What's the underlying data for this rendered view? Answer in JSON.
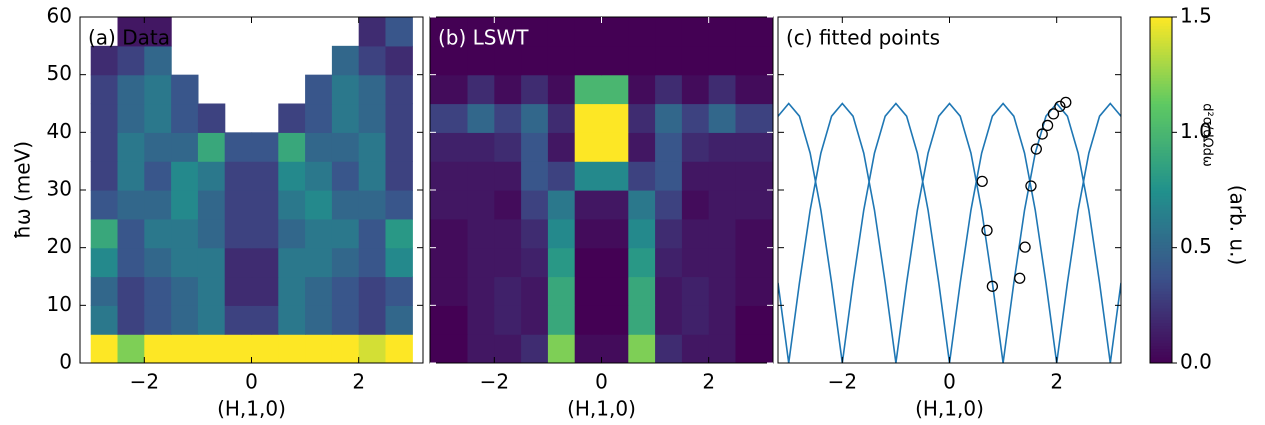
{
  "chart_data": [
    {
      "type": "heatmap",
      "title": "(a) Data",
      "title_color": "#000000",
      "xlabel": "(H,1,0)",
      "ylabel": "ħω (meV)",
      "xlim": [
        -3.2,
        3.2
      ],
      "ylim": [
        0,
        60
      ],
      "xticks": [
        {
          "value": -2,
          "label": "−2"
        },
        0,
        2
      ],
      "yticks": [
        0,
        10,
        20,
        30,
        40,
        50,
        60
      ],
      "cmap": "viridis",
      "zlim": [
        0,
        1.5
      ],
      "xbins": [
        -3,
        -2.5,
        -2,
        -1.5,
        -1,
        -0.5,
        0,
        0.5,
        1,
        1.5,
        2,
        2.5,
        3
      ],
      "ybins": [
        0,
        5,
        10,
        15,
        20,
        25,
        30,
        35,
        40,
        45,
        50,
        55,
        60
      ],
      "z": [
        [
          1.5,
          1.2,
          1.5,
          1.5,
          1.5,
          1.5,
          1.5,
          1.5,
          1.5,
          1.5,
          1.4,
          1.5
        ],
        [
          0.6,
          0.3,
          0.4,
          0.5,
          0.6,
          0.3,
          0.3,
          0.6,
          0.5,
          0.4,
          0.3,
          0.5
        ],
        [
          0.5,
          0.3,
          0.4,
          0.5,
          0.6,
          0.2,
          0.2,
          0.6,
          0.5,
          0.4,
          0.3,
          0.4
        ],
        [
          0.7,
          0.4,
          0.5,
          0.6,
          0.6,
          0.2,
          0.2,
          0.6,
          0.6,
          0.5,
          0.4,
          0.7
        ],
        [
          0.9,
          0.4,
          0.6,
          0.6,
          0.5,
          0.3,
          0.3,
          0.5,
          0.6,
          0.6,
          0.4,
          0.8
        ],
        [
          0.4,
          0.5,
          0.5,
          0.7,
          0.5,
          0.3,
          0.3,
          0.6,
          0.7,
          0.5,
          0.5,
          0.4
        ],
        [
          0.3,
          0.6,
          0.4,
          0.7,
          0.6,
          0.3,
          0.3,
          0.7,
          0.6,
          0.4,
          0.6,
          0.3
        ],
        [
          0.3,
          0.6,
          0.5,
          0.5,
          0.9,
          0.4,
          0.4,
          0.9,
          0.5,
          0.5,
          0.6,
          0.3
        ],
        [
          0.3,
          0.5,
          0.6,
          0.4,
          0.3,
          null,
          null,
          0.3,
          0.4,
          0.6,
          0.5,
          0.3
        ],
        [
          0.3,
          0.5,
          0.6,
          0.4,
          null,
          null,
          null,
          null,
          0.4,
          0.6,
          0.5,
          0.3
        ],
        [
          0.2,
          0.3,
          0.5,
          null,
          null,
          null,
          null,
          null,
          null,
          0.5,
          0.3,
          0.2
        ],
        [
          null,
          0.1,
          0.1,
          null,
          null,
          null,
          null,
          null,
          null,
          null,
          0.2,
          0.4
        ]
      ]
    },
    {
      "type": "heatmap",
      "title": "(b) LSWT",
      "title_color": "#ffffff",
      "xlabel": "(H,1,0)",
      "xlim": [
        -3.2,
        3.2
      ],
      "ylim": [
        0,
        60
      ],
      "xticks": [
        {
          "value": -2,
          "label": "−2"
        },
        0,
        2
      ],
      "yticks": [
        0,
        10,
        20,
        30,
        40,
        50,
        60
      ],
      "cmap": "viridis",
      "zlim": [
        0,
        1.5
      ],
      "xbins": [
        -3.2,
        -2.5,
        -2,
        -1.5,
        -1,
        -0.5,
        0,
        0.5,
        1,
        1.5,
        2,
        2.5,
        3.2
      ],
      "ybins": [
        0,
        5,
        10,
        15,
        20,
        25,
        30,
        35,
        40,
        45,
        50,
        55,
        60
      ],
      "z": [
        [
          0,
          0.1,
          0.1,
          0.2,
          1.2,
          0.05,
          0.05,
          1.2,
          0.2,
          0.1,
          0.1,
          0
        ],
        [
          0,
          0.1,
          0.15,
          0.1,
          0.9,
          0,
          0,
          0.9,
          0.1,
          0.15,
          0.1,
          0
        ],
        [
          0.05,
          0.1,
          0.15,
          0.1,
          0.9,
          0,
          0,
          0.9,
          0.1,
          0.15,
          0.1,
          0.05
        ],
        [
          0.05,
          0.1,
          0.1,
          0.15,
          0.8,
          0,
          0,
          0.8,
          0.15,
          0.1,
          0.1,
          0.05
        ],
        [
          0.05,
          0.1,
          0.1,
          0.2,
          0.7,
          0.05,
          0.05,
          0.7,
          0.2,
          0.1,
          0.1,
          0.05
        ],
        [
          0.1,
          0.1,
          0.05,
          0.3,
          0.6,
          0.1,
          0.1,
          0.6,
          0.3,
          0.05,
          0.1,
          0.1
        ],
        [
          0.1,
          0.1,
          0.1,
          0.4,
          0.3,
          0.7,
          0.7,
          0.3,
          0.4,
          0.1,
          0.1,
          0.1
        ],
        [
          0.15,
          0.15,
          0.2,
          0.4,
          0.1,
          1.5,
          1.5,
          0.1,
          0.4,
          0.2,
          0.15,
          0.15
        ],
        [
          0.3,
          0.5,
          0.3,
          0.5,
          0.2,
          1.5,
          1.5,
          0.2,
          0.5,
          0.3,
          0.5,
          0.3
        ],
        [
          0.05,
          0.2,
          0.05,
          0.2,
          0.05,
          1.0,
          1.0,
          0.05,
          0.2,
          0.05,
          0.2,
          0.05
        ],
        [
          0,
          0,
          0,
          0,
          0,
          0,
          0,
          0,
          0,
          0,
          0,
          0
        ],
        [
          0,
          0,
          0,
          0,
          0,
          0,
          0,
          0,
          0,
          0,
          0,
          0
        ]
      ]
    },
    {
      "type": "line",
      "title": "(c)  fitted points",
      "title_color": "#000000",
      "xlabel": "(H,1,0)",
      "xlim": [
        -3.2,
        3.2
      ],
      "ylim": [
        0,
        60
      ],
      "xticks": [
        {
          "value": -2,
          "label": "−2"
        },
        0,
        2
      ],
      "yticks": [
        0,
        10,
        20,
        30,
        40,
        50,
        60
      ],
      "x": [
        -3.2,
        -3,
        -2.8,
        -2.6,
        -2.4,
        -2.2,
        -2,
        -1.8,
        -1.6,
        -1.4,
        -1.2,
        -1,
        -0.8,
        -0.6,
        -0.4,
        -0.2,
        0,
        0.2,
        0.4,
        0.6,
        0.8,
        1,
        1.2,
        1.4,
        1.6,
        1.8,
        2,
        2.2,
        2.4,
        2.6,
        2.8,
        3,
        3.2
      ],
      "series": [
        {
          "color": "#1f77b4",
          "values": [
            42.8,
            45,
            42.8,
            36.4,
            26.5,
            13.9,
            0,
            13.9,
            26.5,
            36.4,
            42.8,
            45,
            42.8,
            36.4,
            26.5,
            13.9,
            0,
            13.9,
            26.5,
            36.4,
            42.8,
            45,
            42.8,
            36.4,
            26.5,
            13.9,
            0,
            13.9,
            26.5,
            36.4,
            42.8,
            45,
            42.8
          ]
        },
        {
          "color": "#1f77b4",
          "values": [
            13.9,
            0,
            13.9,
            26.5,
            36.4,
            42.8,
            45,
            42.8,
            36.4,
            26.5,
            13.9,
            0,
            13.9,
            26.5,
            36.4,
            42.8,
            45,
            42.8,
            36.4,
            26.5,
            13.9,
            0,
            13.9,
            26.5,
            36.4,
            42.8,
            45,
            42.8,
            36.4,
            26.5,
            13.9,
            0,
            13.9
          ]
        }
      ],
      "markers": {
        "color": "#000000",
        "marker": "open-circle",
        "x": [
          0.61,
          0.7,
          0.8,
          1.31,
          1.41,
          1.52,
          1.62,
          1.73,
          1.83,
          1.94,
          2.06,
          2.17
        ],
        "values": [
          31.5,
          23.0,
          13.3,
          14.7,
          20.1,
          30.7,
          37.1,
          39.7,
          41.2,
          43.2,
          44.5,
          45.2
        ]
      }
    }
  ],
  "colorbar": {
    "cmap": "viridis",
    "lim": [
      0,
      1.5
    ],
    "ticks": [
      {
        "value": 0,
        "label": "0.0"
      },
      {
        "value": 0.5,
        "label": "0.5"
      },
      {
        "value": 1,
        "label": "1.0"
      },
      {
        "value": 1.5,
        "label": "1.5"
      }
    ],
    "symbol": "d²σ/dΩdω",
    "label": "(arb. u.)"
  }
}
